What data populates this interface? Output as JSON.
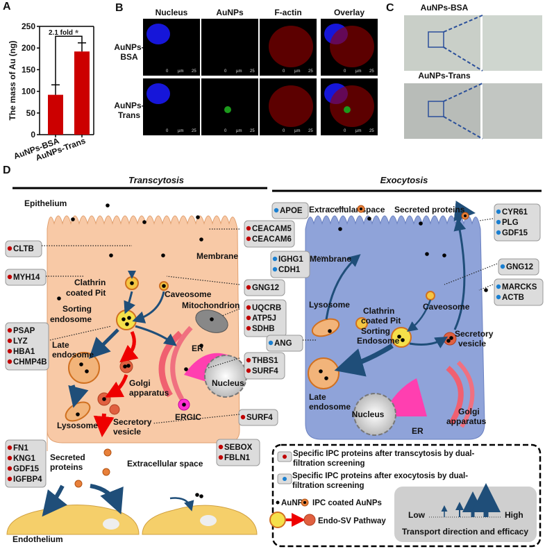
{
  "panels": {
    "a": "A",
    "b": "B",
    "c": "C",
    "d": "D"
  },
  "chart_data": {
    "type": "bar",
    "categories": [
      "AuNPs-BSA",
      "AuNPs-Trans"
    ],
    "values": [
      92,
      192
    ],
    "errors": [
      23,
      20
    ],
    "ylabel": "The mass of Au (ng)",
    "ylim": [
      0,
      250
    ],
    "yticks": [
      "0",
      "50",
      "100",
      "150",
      "200",
      "250"
    ],
    "annotation": "2.1 fold",
    "significance": "*",
    "bar_color": "#cc0000",
    "grid": false
  },
  "micro": {
    "columns": [
      "Nucleus",
      "AuNPs",
      "F-actin",
      "Overlay"
    ],
    "rows": [
      {
        "l1": "AuNPs-",
        "l2": "BSA"
      },
      {
        "l1": "AuNPs-",
        "l2": "Trans"
      }
    ],
    "scale": {
      "zero": "0",
      "unit": "µm",
      "max": "25"
    }
  },
  "bright": {
    "row1": "AuNPs-BSA",
    "row2": "AuNPs-Trans"
  },
  "diagram": {
    "transcytosis": "Transcytosis",
    "exocytosis": "Exocytosis",
    "left": {
      "epithelium": "Epithelium",
      "membrane": "Membrane",
      "clathrin1": "Clathrin",
      "clathrin2": "coated Pit",
      "caveosome": "Caveosome",
      "mito": "Mitochondrion",
      "sorting1": "Sorting",
      "sorting2": "endosome",
      "late1": "Late",
      "late2": "endosome",
      "er": "ER",
      "nucleus": "Nucleus",
      "golgi1": "Golgi",
      "golgi2": "apparatus",
      "ergic": "ERGIC",
      "lysosome": "Lysosome",
      "sv1": "Secretory",
      "sv2": "vesicle",
      "secreted1": "Secreted",
      "secreted2": "proteins",
      "extracellular": "Extracellular space",
      "endothelium": "Endothelium"
    },
    "right": {
      "extracellular": "Extracellular space",
      "secreted": "Secreted proteins",
      "membrane": "Membrane",
      "clathrin1": "Clathrin",
      "clathrin2": "coated Pit",
      "caveosome": "Caveosome",
      "lysosome": "Lysosome",
      "sorting1": "Sorting",
      "sorting2": "Endosome",
      "sv1": "Secretory",
      "sv2": "vesicle",
      "late1": "Late",
      "late2": "endosome",
      "nucleus": "Nucleus",
      "er": "ER",
      "golgi1": "Golgi",
      "golgi2": "apparatus"
    },
    "genes_red": {
      "ceacam": [
        "CEACAM5",
        "CEACAM6"
      ],
      "cltb": [
        "CLTB"
      ],
      "myh14": [
        "MYH14"
      ],
      "gng12": [
        "GNG12"
      ],
      "mito": [
        "UQCRB",
        "ATP5J",
        "SDHB"
      ],
      "late": [
        "PSAP",
        "LYZ",
        "HBA1",
        "CHMP4B"
      ],
      "er": [
        "THBS1",
        "SURF4"
      ],
      "surf4": [
        "SURF4"
      ],
      "secreted": [
        "FN1",
        "KNG1",
        "GDF15",
        "IGFBP4"
      ],
      "sebox": [
        "SEBOX",
        "FBLN1"
      ]
    },
    "genes_blue": {
      "apoe": [
        "APOE"
      ],
      "ighg": [
        "IGHG1",
        "CDH1"
      ],
      "cyr": [
        "CYR61",
        "PLG",
        "GDF15"
      ],
      "gng12": [
        "GNG12"
      ],
      "marcks": [
        "MARCKS",
        "ACTB"
      ],
      "ang": [
        "ANG"
      ]
    },
    "colors": {
      "red_dot": "#c00000",
      "blue_dot": "#1a7fd0",
      "left_cell": "#f8c9a6",
      "right_cell": "#8fa3d9",
      "arrow": "#1f4e79"
    }
  },
  "legend": {
    "red1": "Specific IPC proteins after transcytosis by dual-",
    "red2": "filtration screening",
    "blue1": "Specific IPC proteins after exocytosis by dual-",
    "blue2": "filtration screening",
    "aunps": "AuNPs",
    "ipc": "IPC coated AuNPs",
    "endo": "Endo-SV Pathway",
    "low": "Low",
    "high": "High",
    "transport": "Transport direction and efficacy"
  }
}
